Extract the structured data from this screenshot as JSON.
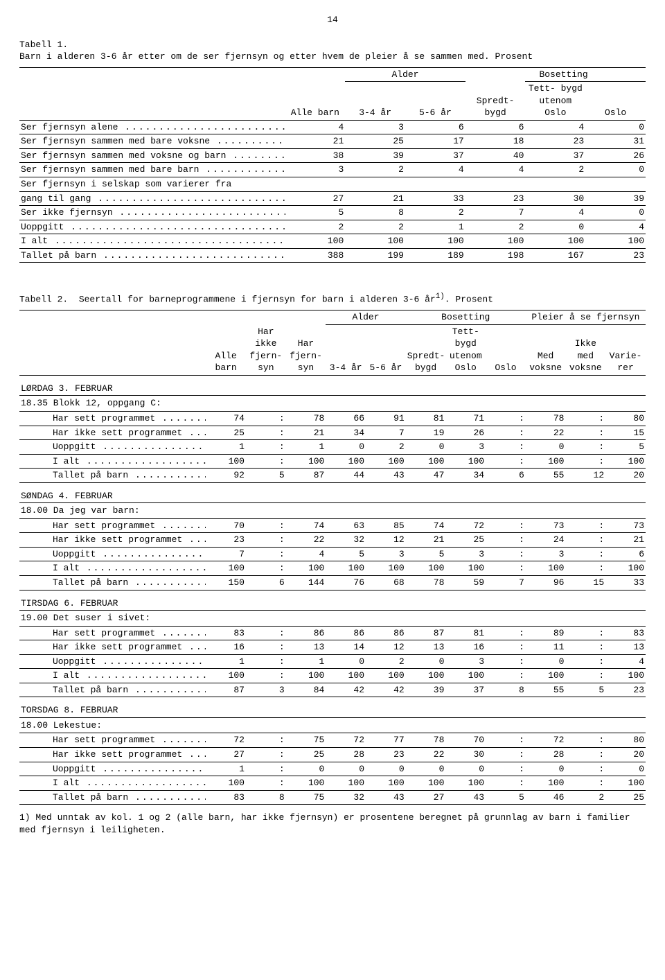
{
  "page_number": "14",
  "table1": {
    "caption_label": "Tabell 1.",
    "caption_text": "Barn i alderen 3-6 år etter om de ser fjernsyn og etter hvem de pleier å se sammen med. Prosent",
    "col_headers": {
      "alle_barn": "Alle barn",
      "alder": "Alder",
      "bosetting": "Bosetting",
      "c1": "3-4 år",
      "c2": "5-6 år",
      "c3": "Spredt- bygd",
      "c4": "Tett- bygd utenom Oslo",
      "c5": "Oslo"
    },
    "rows": [
      {
        "label": "Ser fjernsyn alene",
        "v": [
          "4",
          "3",
          "6",
          "6",
          "4",
          "0"
        ]
      },
      {
        "label": "Ser fjernsyn sammen med bare voksne",
        "v": [
          "21",
          "25",
          "17",
          "18",
          "23",
          "31"
        ]
      },
      {
        "label": "Ser fjernsyn sammen med voksne og barn",
        "v": [
          "38",
          "39",
          "37",
          "40",
          "37",
          "26"
        ]
      },
      {
        "label": "Ser fjernsyn sammen med bare barn",
        "v": [
          "3",
          "2",
          "4",
          "4",
          "2",
          "0"
        ]
      },
      {
        "label": "Ser fjernsyn i selskap som varierer fra",
        "cont": true
      },
      {
        "label": "  gang til gang",
        "v": [
          "27",
          "21",
          "33",
          "23",
          "30",
          "39"
        ]
      },
      {
        "label": "Ser ikke fjernsyn",
        "v": [
          "5",
          "8",
          "2",
          "7",
          "4",
          "0"
        ]
      },
      {
        "label": "Uoppgitt",
        "v": [
          "2",
          "2",
          "1",
          "2",
          "0",
          "4"
        ],
        "underline": true
      }
    ],
    "total": {
      "label": "I alt",
      "v": [
        "100",
        "100",
        "100",
        "100",
        "100",
        "100"
      ]
    },
    "count": {
      "label": "Tallet på barn",
      "v": [
        "388",
        "199",
        "189",
        "198",
        "167",
        "23"
      ]
    }
  },
  "table2": {
    "caption_label": "Tabell 2.",
    "caption_text": "Seertall for barneprogrammene i fjernsyn for barn i alderen 3-6 år",
    "caption_sup": "1)",
    "caption_tail": ".  Prosent",
    "col_headers": {
      "alle_barn": "Alle barn",
      "har_ikke": "Har ikke fjern- syn",
      "har": "Har fjern- syn",
      "alder": "Alder",
      "c34": "3-4 år",
      "c56": "5-6 år",
      "bosetting": "Bosetting",
      "spredt": "Spredt- bygd",
      "tett": "Tett- bygd utenom Oslo",
      "oslo": "Oslo",
      "pleier": "Pleier å se fjernsyn",
      "med": "Med voksne",
      "ikke": "Ikke med voksne",
      "var": "Varie- rer"
    },
    "groups": [
      {
        "day": "LØRDAG 3. FEBRUAR",
        "time": "18.35",
        "title": "Blokk 12, oppgang C:",
        "rows": [
          {
            "label": "Har sett programmet",
            "v": [
              "74",
              ":",
              "78",
              "66",
              "91",
              "81",
              "71",
              ":",
              "78",
              ":",
              "80"
            ]
          },
          {
            "label": "Har ikke sett programmet",
            "v": [
              "25",
              ":",
              "21",
              "34",
              "7",
              "19",
              "26",
              ":",
              "22",
              ":",
              "15"
            ]
          },
          {
            "label": "Uoppgitt",
            "v": [
              "1",
              ":",
              "1",
              "0",
              "2",
              "0",
              "3",
              ":",
              "0",
              ":",
              "5"
            ]
          }
        ],
        "total": {
          "label": "I alt",
          "v": [
            "100",
            ":",
            "100",
            "100",
            "100",
            "100",
            "100",
            ":",
            "100",
            ":",
            "100"
          ]
        },
        "count": {
          "label": "Tallet på barn",
          "v": [
            "92",
            "5",
            "87",
            "44",
            "43",
            "47",
            "34",
            "6",
            "55",
            "12",
            "20"
          ]
        }
      },
      {
        "day": "SØNDAG 4. FEBRUAR",
        "time": "18.00",
        "title": "Da jeg var barn:",
        "rows": [
          {
            "label": "Har sett programmet",
            "v": [
              "70",
              ":",
              "74",
              "63",
              "85",
              "74",
              "72",
              ":",
              "73",
              ":",
              "73"
            ]
          },
          {
            "label": "Har ikke sett programmet",
            "v": [
              "23",
              ":",
              "22",
              "32",
              "12",
              "21",
              "25",
              ":",
              "24",
              ":",
              "21"
            ]
          },
          {
            "label": "Uoppgitt",
            "v": [
              "7",
              ":",
              "4",
              "5",
              "3",
              "5",
              "3",
              ":",
              "3",
              ":",
              "6"
            ]
          }
        ],
        "total": {
          "label": "I alt",
          "v": [
            "100",
            ":",
            "100",
            "100",
            "100",
            "100",
            "100",
            ":",
            "100",
            ":",
            "100"
          ]
        },
        "count": {
          "label": "Tallet på barn",
          "v": [
            "150",
            "6",
            "144",
            "76",
            "68",
            "78",
            "59",
            "7",
            "96",
            "15",
            "33"
          ]
        }
      },
      {
        "day": "TIRSDAG 6. FEBRUAR",
        "time": "19.00",
        "title": "Det suser i sivet:",
        "rows": [
          {
            "label": "Har sett programmet",
            "v": [
              "83",
              ":",
              "86",
              "86",
              "86",
              "87",
              "81",
              ":",
              "89",
              ":",
              "83"
            ]
          },
          {
            "label": "Har ikke sett programmet",
            "v": [
              "16",
              ":",
              "13",
              "14",
              "12",
              "13",
              "16",
              ":",
              "11",
              ":",
              "13"
            ]
          },
          {
            "label": "Uoppgitt",
            "v": [
              "1",
              ":",
              "1",
              "0",
              "2",
              "0",
              "3",
              ":",
              "0",
              ":",
              "4"
            ]
          }
        ],
        "total": {
          "label": "I alt",
          "v": [
            "100",
            ":",
            "100",
            "100",
            "100",
            "100",
            "100",
            ":",
            "100",
            ":",
            "100"
          ]
        },
        "count": {
          "label": "Tallet på barn",
          "v": [
            "87",
            "3",
            "84",
            "42",
            "42",
            "39",
            "37",
            "8",
            "55",
            "5",
            "23"
          ]
        }
      },
      {
        "day": "TORSDAG 8. FEBRUAR",
        "time": "18.00",
        "title": "Lekestue:",
        "rows": [
          {
            "label": "Har sett programmet",
            "v": [
              "72",
              ":",
              "75",
              "72",
              "77",
              "78",
              "70",
              ":",
              "72",
              ":",
              "80"
            ]
          },
          {
            "label": "Har ikke sett programmet",
            "v": [
              "27",
              ":",
              "25",
              "28",
              "23",
              "22",
              "30",
              ":",
              "28",
              ":",
              "20"
            ]
          },
          {
            "label": "Uoppgitt",
            "v": [
              "1",
              ":",
              "0",
              "0",
              "0",
              "0",
              "0",
              ":",
              "0",
              ":",
              "0"
            ]
          }
        ],
        "total": {
          "label": "I alt",
          "v": [
            "100",
            ":",
            "100",
            "100",
            "100",
            "100",
            "100",
            ":",
            "100",
            ":",
            "100"
          ]
        },
        "count": {
          "label": "Tallet på barn",
          "v": [
            "83",
            "8",
            "75",
            "32",
            "43",
            "27",
            "43",
            "5",
            "46",
            "2",
            "25"
          ]
        }
      }
    ],
    "footnote": "1) Med unntak av kol. 1 og 2 (alle barn, har ikke fjernsyn) er prosentene beregnet på grunnlag av barn i familier med fjernsyn i leiligheten."
  }
}
